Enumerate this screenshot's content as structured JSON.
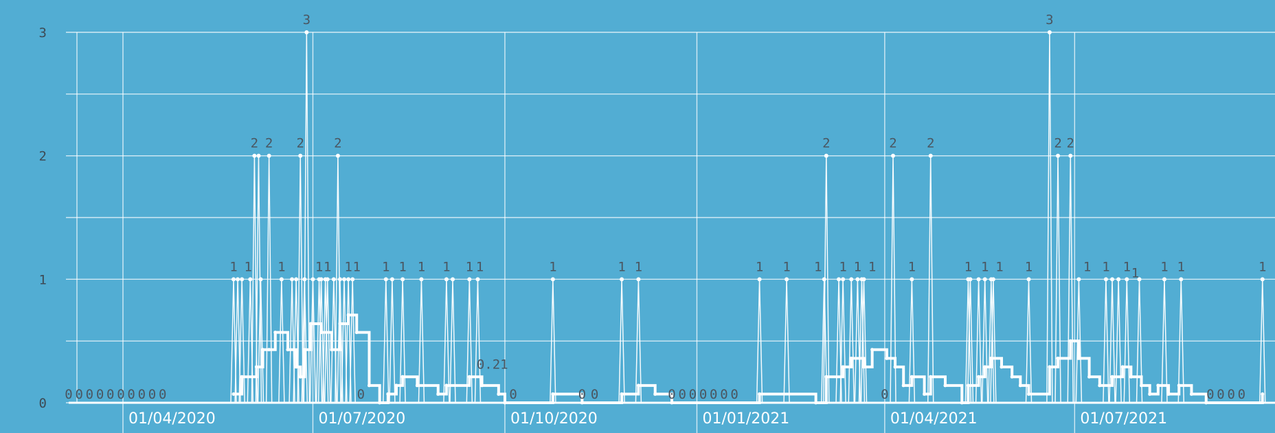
{
  "chart_data": {
    "type": "line",
    "title": "",
    "xlabel": "",
    "ylabel": "",
    "ylim": [
      0,
      3
    ],
    "yticks": [
      "0",
      "1",
      "2",
      "3"
    ],
    "xlim": [
      "2020-03-06",
      "2021-10-05"
    ],
    "xticks": [
      {
        "date": "2020-04-01",
        "label": "01/04/2020"
      },
      {
        "date": "2020-07-01",
        "label": "01/07/2020"
      },
      {
        "date": "2020-10-01",
        "label": "01/10/2020"
      },
      {
        "date": "2021-01-01",
        "label": "01/01/2021"
      },
      {
        "date": "2021-04-01",
        "label": "01/04/2021"
      },
      {
        "date": "2021-07-01",
        "label": "01/07/2021"
      }
    ],
    "grid": true,
    "legend": "none",
    "series": [
      {
        "values": [
          {
            "x": "2020-05-24",
            "y": 1
          },
          {
            "x": "2020-05-26",
            "y": 1
          },
          {
            "x": "2020-05-28",
            "y": 1
          },
          {
            "x": "2020-06-01",
            "y": 1
          },
          {
            "x": "2020-06-03",
            "y": 2
          },
          {
            "x": "2020-06-05",
            "y": 2
          },
          {
            "x": "2020-06-06",
            "y": 1
          },
          {
            "x": "2020-06-10",
            "y": 2
          },
          {
            "x": "2020-06-16",
            "y": 1
          },
          {
            "x": "2020-06-21",
            "y": 1
          },
          {
            "x": "2020-06-23",
            "y": 1
          },
          {
            "x": "2020-06-25",
            "y": 2
          },
          {
            "x": "2020-06-27",
            "y": 1
          },
          {
            "x": "2020-06-28",
            "y": 3
          },
          {
            "x": "2020-07-01",
            "y": 1
          },
          {
            "x": "2020-07-04",
            "y": 1
          },
          {
            "x": "2020-07-05",
            "y": 1
          },
          {
            "x": "2020-07-07",
            "y": 1
          },
          {
            "x": "2020-07-08",
            "y": 1
          },
          {
            "x": "2020-07-11",
            "y": 1
          },
          {
            "x": "2020-07-13",
            "y": 2
          },
          {
            "x": "2020-07-14",
            "y": 1
          },
          {
            "x": "2020-07-16",
            "y": 1
          },
          {
            "x": "2020-07-18",
            "y": 1
          },
          {
            "x": "2020-07-20",
            "y": 1
          },
          {
            "x": "2020-08-05",
            "y": 1
          },
          {
            "x": "2020-08-08",
            "y": 1
          },
          {
            "x": "2020-08-13",
            "y": 1
          },
          {
            "x": "2020-08-22",
            "y": 1
          },
          {
            "x": "2020-09-03",
            "y": 1
          },
          {
            "x": "2020-09-06",
            "y": 1
          },
          {
            "x": "2020-09-14",
            "y": 1
          },
          {
            "x": "2020-09-18",
            "y": 1
          },
          {
            "x": "2020-10-24",
            "y": 1
          },
          {
            "x": "2020-11-26",
            "y": 1
          },
          {
            "x": "2020-12-04",
            "y": 1
          },
          {
            "x": "2021-01-31",
            "y": 1
          },
          {
            "x": "2021-02-13",
            "y": 1
          },
          {
            "x": "2021-02-31",
            "y": 1
          },
          {
            "x": "2021-03-04",
            "y": 2
          },
          {
            "x": "2021-03-10",
            "y": 1
          },
          {
            "x": "2021-03-12",
            "y": 1
          },
          {
            "x": "2021-03-16",
            "y": 1
          },
          {
            "x": "2021-03-19",
            "y": 1
          },
          {
            "x": "2021-03-21",
            "y": 1
          },
          {
            "x": "2021-03-22",
            "y": 1
          },
          {
            "x": "2021-04-05",
            "y": 2
          },
          {
            "x": "2021-04-14",
            "y": 1
          },
          {
            "x": "2021-04-23",
            "y": 2
          },
          {
            "x": "2021-05-11",
            "y": 1
          },
          {
            "x": "2021-05-12",
            "y": 1
          },
          {
            "x": "2021-05-16",
            "y": 1
          },
          {
            "x": "2021-05-19",
            "y": 1
          },
          {
            "x": "2021-05-22",
            "y": 1
          },
          {
            "x": "2021-05-23",
            "y": 1
          },
          {
            "x": "2021-06-09",
            "y": 1
          },
          {
            "x": "2021-06-19",
            "y": 3
          },
          {
            "x": "2021-06-23",
            "y": 2
          },
          {
            "x": "2021-06-29",
            "y": 2
          },
          {
            "x": "2021-07-03",
            "y": 1
          },
          {
            "x": "2021-07-16",
            "y": 1
          },
          {
            "x": "2021-07-19",
            "y": 1
          },
          {
            "x": "2021-07-22",
            "y": 1
          },
          {
            "x": "2021-07-26",
            "y": 1
          },
          {
            "x": "2021-08-01",
            "y": 1
          },
          {
            "x": "2021-08-13",
            "y": 1
          },
          {
            "x": "2021-08-21",
            "y": 1
          },
          {
            "x": "2021-09-29",
            "y": 1
          }
        ]
      },
      {
        "values": [
          {
            "x": "2020-05-24",
            "y": 0.07
          },
          {
            "x": "2020-05-28",
            "y": 0.21
          },
          {
            "x": "2020-06-04",
            "y": 0.29
          },
          {
            "x": "2020-06-07",
            "y": 0.43
          },
          {
            "x": "2020-06-10",
            "y": 0.43
          },
          {
            "x": "2020-06-13",
            "y": 0.57
          },
          {
            "x": "2020-06-19",
            "y": 0.43
          },
          {
            "x": "2020-06-23",
            "y": 0.29
          },
          {
            "x": "2020-06-25",
            "y": 0.21
          },
          {
            "x": "2020-06-27",
            "y": 0.43
          },
          {
            "x": "2020-06-30",
            "y": 0.64
          },
          {
            "x": "2020-07-05",
            "y": 0.57
          },
          {
            "x": "2020-07-10",
            "y": 0.43
          },
          {
            "x": "2020-07-14",
            "y": 0.64
          },
          {
            "x": "2020-07-18",
            "y": 0.71
          },
          {
            "x": "2020-07-22",
            "y": 0.57
          },
          {
            "x": "2020-07-28",
            "y": 0.14
          },
          {
            "x": "2020-08-02",
            "y": 0
          },
          {
            "x": "2020-08-06",
            "y": 0.07
          },
          {
            "x": "2020-08-10",
            "y": 0.14
          },
          {
            "x": "2020-08-13",
            "y": 0.21
          },
          {
            "x": "2020-08-20",
            "y": 0.14
          },
          {
            "x": "2020-08-30",
            "y": 0.07
          },
          {
            "x": "2020-09-03",
            "y": 0.14
          },
          {
            "x": "2020-09-14",
            "y": 0.21
          },
          {
            "x": "2020-09-20",
            "y": 0.14
          },
          {
            "x": "2020-09-28",
            "y": 0.07
          },
          {
            "x": "2020-10-01",
            "y": 0
          },
          {
            "x": "2020-10-24",
            "y": 0.07
          },
          {
            "x": "2020-11-07",
            "y": 0
          },
          {
            "x": "2020-11-26",
            "y": 0.07
          },
          {
            "x": "2020-12-04",
            "y": 0.14
          },
          {
            "x": "2020-12-12",
            "y": 0.07
          },
          {
            "x": "2020-12-20",
            "y": 0
          },
          {
            "x": "2021-01-31",
            "y": 0.07
          },
          {
            "x": "2021-02-27",
            "y": 0
          },
          {
            "x": "2021-03-04",
            "y": 0.21
          },
          {
            "x": "2021-03-12",
            "y": 0.29
          },
          {
            "x": "2021-03-16",
            "y": 0.36
          },
          {
            "x": "2021-03-22",
            "y": 0.29
          },
          {
            "x": "2021-03-26",
            "y": 0.43
          },
          {
            "x": "2021-04-02",
            "y": 0.36
          },
          {
            "x": "2021-04-06",
            "y": 0.29
          },
          {
            "x": "2021-04-10",
            "y": 0.14
          },
          {
            "x": "2021-04-14",
            "y": 0.21
          },
          {
            "x": "2021-04-20",
            "y": 0.07
          },
          {
            "x": "2021-04-23",
            "y": 0.21
          },
          {
            "x": "2021-04-30",
            "y": 0.14
          },
          {
            "x": "2021-05-08",
            "y": 0
          },
          {
            "x": "2021-05-11",
            "y": 0.14
          },
          {
            "x": "2021-05-16",
            "y": 0.21
          },
          {
            "x": "2021-05-19",
            "y": 0.29
          },
          {
            "x": "2021-05-22",
            "y": 0.36
          },
          {
            "x": "2021-05-27",
            "y": 0.29
          },
          {
            "x": "2021-06-01",
            "y": 0.21
          },
          {
            "x": "2021-06-05",
            "y": 0.14
          },
          {
            "x": "2021-06-09",
            "y": 0.07
          },
          {
            "x": "2021-06-19",
            "y": 0.29
          },
          {
            "x": "2021-06-23",
            "y": 0.36
          },
          {
            "x": "2021-06-29",
            "y": 0.5
          },
          {
            "x": "2021-07-03",
            "y": 0.36
          },
          {
            "x": "2021-07-08",
            "y": 0.21
          },
          {
            "x": "2021-07-13",
            "y": 0.14
          },
          {
            "x": "2021-07-19",
            "y": 0.21
          },
          {
            "x": "2021-07-24",
            "y": 0.29
          },
          {
            "x": "2021-07-28",
            "y": 0.21
          },
          {
            "x": "2021-08-02",
            "y": 0.14
          },
          {
            "x": "2021-08-06",
            "y": 0.07
          },
          {
            "x": "2021-08-10",
            "y": 0.14
          },
          {
            "x": "2021-08-15",
            "y": 0.07
          },
          {
            "x": "2021-08-20",
            "y": 0.14
          },
          {
            "x": "2021-08-26",
            "y": 0.07
          },
          {
            "x": "2021-09-02",
            "y": 0
          },
          {
            "x": "2021-09-29",
            "y": 0.07
          }
        ]
      }
    ],
    "data_labels": [
      {
        "x": "2020-03-06",
        "y": 0,
        "text": "0"
      },
      {
        "x": "2020-03-11",
        "y": 0,
        "text": "0"
      },
      {
        "x": "2020-03-16",
        "y": 0,
        "text": "0"
      },
      {
        "x": "2020-03-21",
        "y": 0,
        "text": "0"
      },
      {
        "x": "2020-03-26",
        "y": 0,
        "text": "0"
      },
      {
        "x": "2020-03-31",
        "y": 0,
        "text": "0"
      },
      {
        "x": "2020-04-05",
        "y": 0,
        "text": "0"
      },
      {
        "x": "2020-04-10",
        "y": 0,
        "text": "0"
      },
      {
        "x": "2020-04-15",
        "y": 0,
        "text": "0"
      },
      {
        "x": "2020-04-20",
        "y": 0,
        "text": "0"
      },
      {
        "x": "2020-05-24",
        "y": 1,
        "text": "1"
      },
      {
        "x": "2020-05-31",
        "y": 1,
        "text": "1"
      },
      {
        "x": "2020-06-03",
        "y": 2,
        "text": "2"
      },
      {
        "x": "2020-06-10",
        "y": 2,
        "text": "2"
      },
      {
        "x": "2020-06-16",
        "y": 1,
        "text": "1"
      },
      {
        "x": "2020-06-25",
        "y": 2,
        "text": "2"
      },
      {
        "x": "2020-06-28",
        "y": 3,
        "text": "3"
      },
      {
        "x": "2020-07-04",
        "y": 1,
        "text": "1"
      },
      {
        "x": "2020-07-08",
        "y": 1,
        "text": "1"
      },
      {
        "x": "2020-07-13",
        "y": 2,
        "text": "2"
      },
      {
        "x": "2020-07-18",
        "y": 1,
        "text": "1"
      },
      {
        "x": "2020-07-22",
        "y": 1,
        "text": "1"
      },
      {
        "x": "2020-07-24",
        "y": 0,
        "text": "0"
      },
      {
        "x": "2020-08-05",
        "y": 1,
        "text": "1"
      },
      {
        "x": "2020-08-13",
        "y": 1,
        "text": "1"
      },
      {
        "x": "2020-08-22",
        "y": 1,
        "text": "1"
      },
      {
        "x": "2020-09-03",
        "y": 1,
        "text": "1"
      },
      {
        "x": "2020-09-14",
        "y": 1,
        "text": "1"
      },
      {
        "x": "2020-09-19",
        "y": 1,
        "text": "1"
      },
      {
        "x": "2020-09-25",
        "y": 0.21,
        "text": "0.21"
      },
      {
        "x": "2020-10-05",
        "y": 0,
        "text": "0"
      },
      {
        "x": "2020-10-24",
        "y": 1,
        "text": "1"
      },
      {
        "x": "2020-11-07",
        "y": 0,
        "text": "0"
      },
      {
        "x": "2020-11-13",
        "y": 0,
        "text": "0"
      },
      {
        "x": "2020-11-26",
        "y": 1,
        "text": "1"
      },
      {
        "x": "2020-12-04",
        "y": 1,
        "text": "1"
      },
      {
        "x": "2020-12-20",
        "y": 0,
        "text": "0"
      },
      {
        "x": "2020-12-25",
        "y": 0,
        "text": "0"
      },
      {
        "x": "2020-12-30",
        "y": 0,
        "text": "0"
      },
      {
        "x": "2021-01-04",
        "y": 0,
        "text": "0"
      },
      {
        "x": "2021-01-09",
        "y": 0,
        "text": "0"
      },
      {
        "x": "2021-01-14",
        "y": 0,
        "text": "0"
      },
      {
        "x": "2021-01-19",
        "y": 0,
        "text": "0"
      },
      {
        "x": "2021-01-31",
        "y": 1,
        "text": "1"
      },
      {
        "x": "2021-02-13",
        "y": 1,
        "text": "1"
      },
      {
        "x": "2021-02-28",
        "y": 1,
        "text": "1"
      },
      {
        "x": "2021-03-04",
        "y": 2,
        "text": "2"
      },
      {
        "x": "2021-03-12",
        "y": 1,
        "text": "1"
      },
      {
        "x": "2021-03-19",
        "y": 1,
        "text": "1"
      },
      {
        "x": "2021-03-26",
        "y": 1,
        "text": "1"
      },
      {
        "x": "2021-04-01",
        "y": 0,
        "text": "0"
      },
      {
        "x": "2021-04-05",
        "y": 2,
        "text": "2"
      },
      {
        "x": "2021-04-14",
        "y": 1,
        "text": "1"
      },
      {
        "x": "2021-04-23",
        "y": 2,
        "text": "2"
      },
      {
        "x": "2021-05-11",
        "y": 1,
        "text": "1"
      },
      {
        "x": "2021-05-19",
        "y": 1,
        "text": "1"
      },
      {
        "x": "2021-05-26",
        "y": 1,
        "text": "1"
      },
      {
        "x": "2021-06-09",
        "y": 1,
        "text": "1"
      },
      {
        "x": "2021-06-19",
        "y": 3,
        "text": "3"
      },
      {
        "x": "2021-06-23",
        "y": 2,
        "text": "2"
      },
      {
        "x": "2021-06-29",
        "y": 2,
        "text": "2"
      },
      {
        "x": "2021-07-07",
        "y": 1,
        "text": "1"
      },
      {
        "x": "2021-07-16",
        "y": 1,
        "text": "1"
      },
      {
        "x": "2021-07-26",
        "y": 1,
        "text": "1"
      },
      {
        "x": "2021-07-30",
        "y": 0.95,
        "text": "1"
      },
      {
        "x": "2021-08-13",
        "y": 1,
        "text": "1"
      },
      {
        "x": "2021-08-21",
        "y": 1,
        "text": "1"
      },
      {
        "x": "2021-09-04",
        "y": 0,
        "text": "0"
      },
      {
        "x": "2021-09-09",
        "y": 0,
        "text": "0"
      },
      {
        "x": "2021-09-14",
        "y": 0,
        "text": "0"
      },
      {
        "x": "2021-09-19",
        "y": 0,
        "text": "0"
      },
      {
        "x": "2021-09-29",
        "y": 1,
        "text": "1"
      }
    ]
  }
}
